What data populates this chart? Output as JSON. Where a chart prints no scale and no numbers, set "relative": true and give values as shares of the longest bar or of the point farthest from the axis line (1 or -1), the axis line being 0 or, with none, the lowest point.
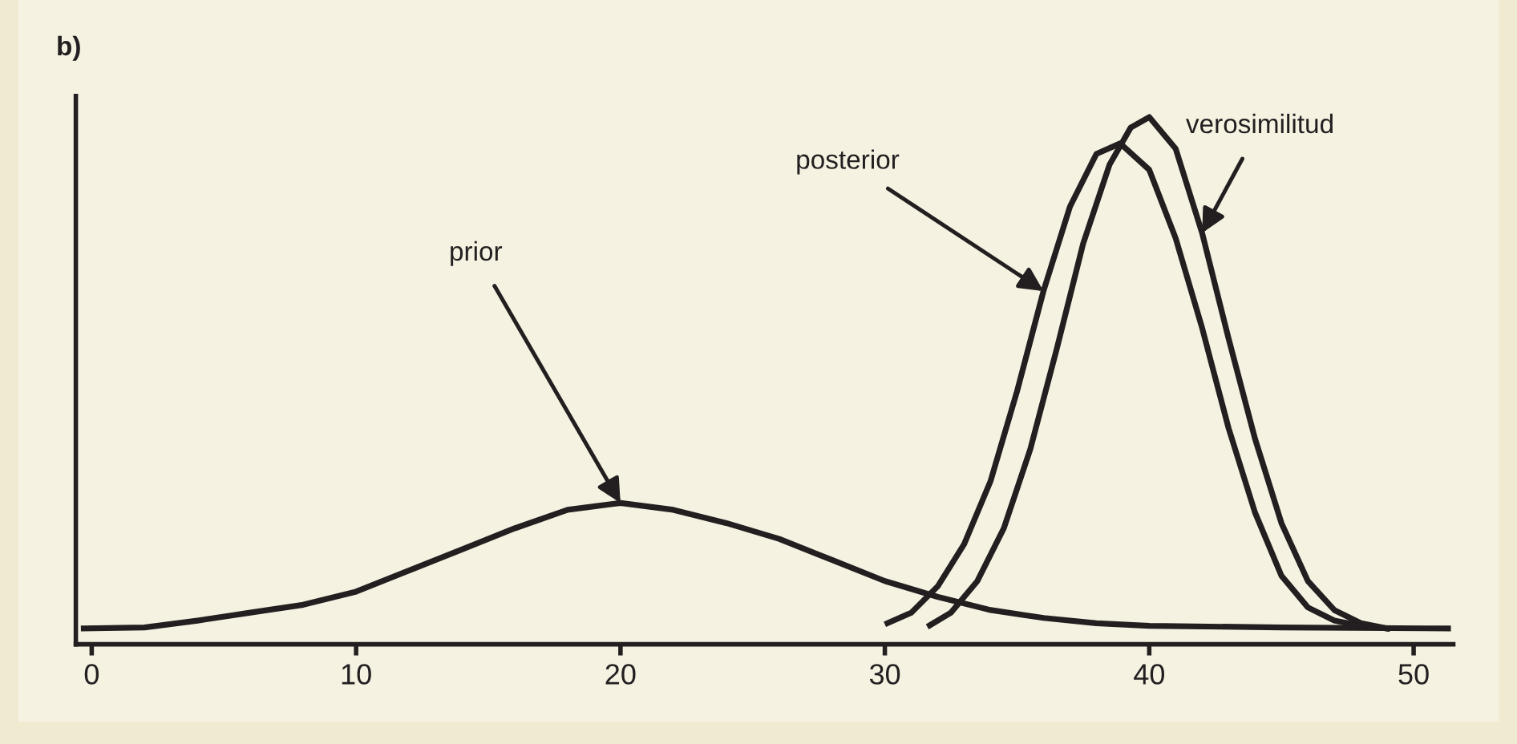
{
  "chart_data": {
    "type": "line",
    "title": "b)",
    "relative": true,
    "xlim": [
      -0.6,
      51.5
    ],
    "xticks": [
      0,
      10,
      20,
      30,
      40,
      50
    ],
    "grid": false,
    "marker": "none",
    "line_style": "solid",
    "series": [
      {
        "color": "#231f20",
        "x": [
          -0.3,
          2,
          4,
          6,
          8,
          10,
          12,
          14,
          16,
          18,
          20,
          22,
          24,
          26,
          28,
          30,
          32,
          34,
          36,
          38,
          40,
          45,
          51.3
        ],
        "values": [
          0.03,
          0.032,
          0.045,
          0.06,
          0.075,
          0.1,
          0.14,
          0.18,
          0.22,
          0.255,
          0.268,
          0.255,
          0.23,
          0.2,
          0.16,
          0.12,
          0.09,
          0.065,
          0.05,
          0.04,
          0.035,
          0.032,
          0.03
        ]
      },
      {
        "color": "#231f20",
        "x": [
          30.1,
          31,
          32,
          33,
          34,
          35,
          36,
          37,
          38,
          38.9,
          40,
          41,
          42,
          43,
          44,
          45,
          46,
          47,
          48,
          49
        ],
        "values": [
          0.04,
          0.06,
          0.11,
          0.19,
          0.31,
          0.48,
          0.67,
          0.83,
          0.93,
          0.95,
          0.9,
          0.77,
          0.6,
          0.41,
          0.25,
          0.13,
          0.07,
          0.045,
          0.035,
          0.03
        ]
      },
      {
        "color": "#231f20",
        "x": [
          31.7,
          32.5,
          33.5,
          34.5,
          35.5,
          36.5,
          37.5,
          38.5,
          39.3,
          40,
          41,
          42,
          43,
          44,
          45,
          46,
          47,
          48,
          49
        ],
        "values": [
          0.036,
          0.06,
          0.12,
          0.22,
          0.37,
          0.56,
          0.76,
          0.91,
          0.98,
          1.0,
          0.94,
          0.78,
          0.58,
          0.39,
          0.23,
          0.12,
          0.065,
          0.04,
          0.03
        ]
      }
    ],
    "annotations": [
      {
        "text": "prior",
        "x": 20,
        "y": 0.268
      },
      {
        "text": "posterior",
        "x": 36,
        "y": 0.67
      },
      {
        "text": "verosimilitud",
        "x": 42,
        "y": 0.78
      }
    ]
  }
}
